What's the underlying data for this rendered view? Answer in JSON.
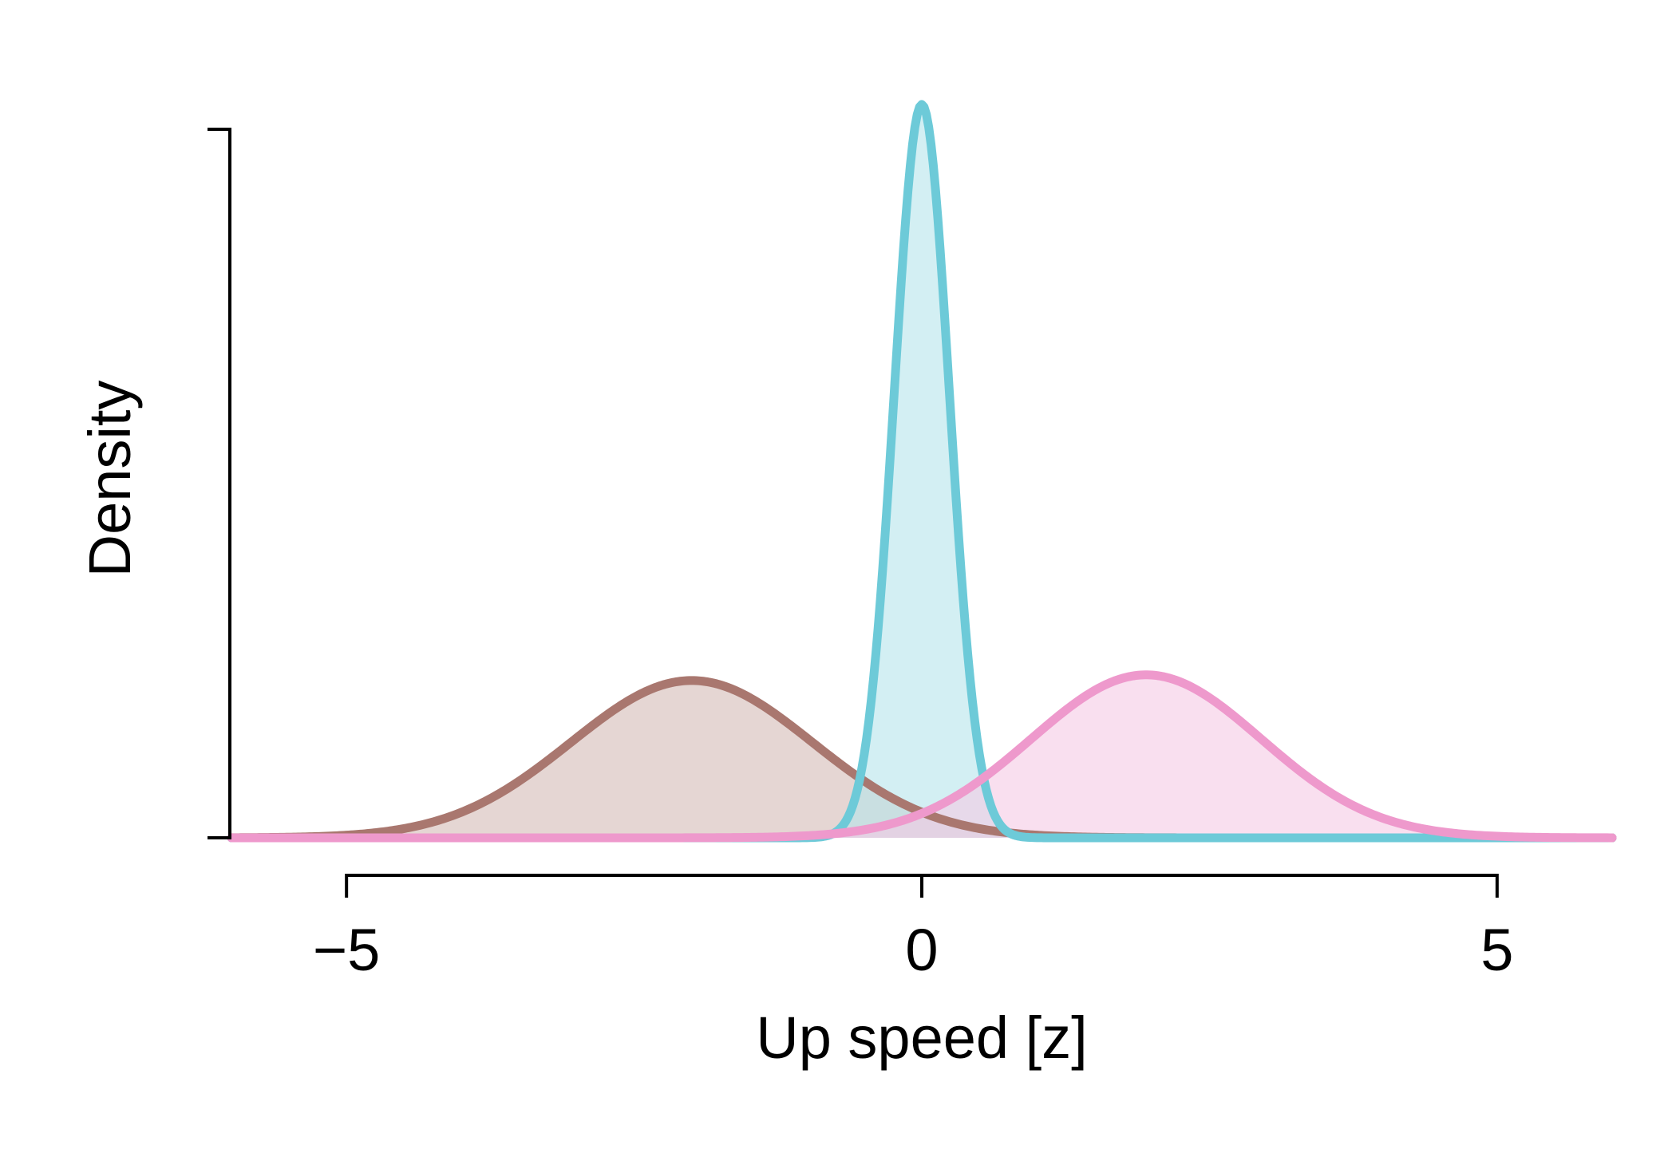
{
  "chart_data": {
    "type": "area",
    "title": "",
    "xlabel": "Up speed [z]",
    "ylabel": "Density",
    "xlim": [
      -6,
      6
    ],
    "ylim": [
      0,
      1
    ],
    "x_ticks": [
      -5,
      0,
      5
    ],
    "x_tick_labels": [
      "−5",
      "0",
      "5"
    ],
    "y_tick_labels_visible": false,
    "grid": false,
    "legend": "none",
    "series": [
      {
        "distribution": "normal",
        "mean": -2.0,
        "sd": 1.05,
        "peak_density": 0.222,
        "color": "#a9776f",
        "fill": "#d4bab5"
      },
      {
        "distribution": "normal",
        "mean": 0.0,
        "sd": 0.24,
        "peak_density": 1.035,
        "color": "#6dcad8",
        "fill": "#b6e5eb"
      },
      {
        "distribution": "normal",
        "mean": 1.95,
        "sd": 1.0,
        "peak_density": 0.23,
        "color": "#ee99cc",
        "fill": "#f5cae4"
      }
    ]
  }
}
